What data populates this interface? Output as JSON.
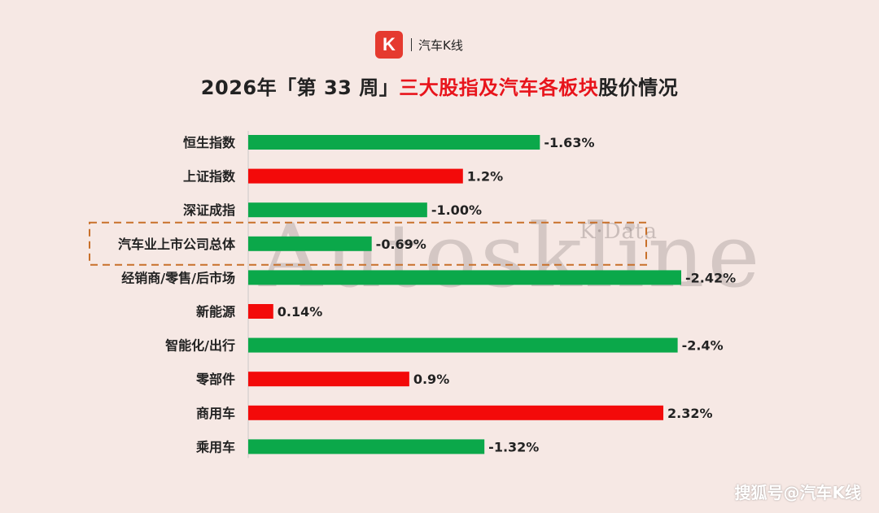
{
  "brand": {
    "logo_letter": "K",
    "name": "汽车K线"
  },
  "title": {
    "part1": "2026年「第 33 周」",
    "part2": "三大股指及汽车各板块",
    "part3": "股价情况"
  },
  "watermark": {
    "main": "Autoskline",
    "sub": "K·Data"
  },
  "footer": {
    "text": "搜狐号@汽车K线"
  },
  "colors": {
    "up": "#f30a0a",
    "down": "#0ba84a",
    "title_highlight": "#e8141b",
    "logo": "#e53a2f",
    "box_border": "#c8702a"
  },
  "chart_data": {
    "type": "bar",
    "orientation": "horizontal",
    "categories": [
      "恒生指数",
      "上证指数",
      "深证成指",
      "汽车业上市公司总体",
      "经销商/零售/后市场",
      "新能源",
      "智能化/出行",
      "零部件",
      "商用车",
      "乘用车"
    ],
    "values": [
      -1.63,
      1.2,
      -1.0,
      -0.69,
      -2.42,
      0.14,
      -2.4,
      0.9,
      2.32,
      -1.32
    ],
    "value_labels": [
      "-1.63%",
      "1.2%",
      "-1.00%",
      "-0.69%",
      "-2.42%",
      "0.14%",
      "-2.4%",
      "0.9%",
      "2.32%",
      "-1.32%"
    ],
    "highlighted_category": "汽车业上市公司总体",
    "bar_length": "absolute value",
    "xlim": [
      0,
      2.42
    ]
  }
}
